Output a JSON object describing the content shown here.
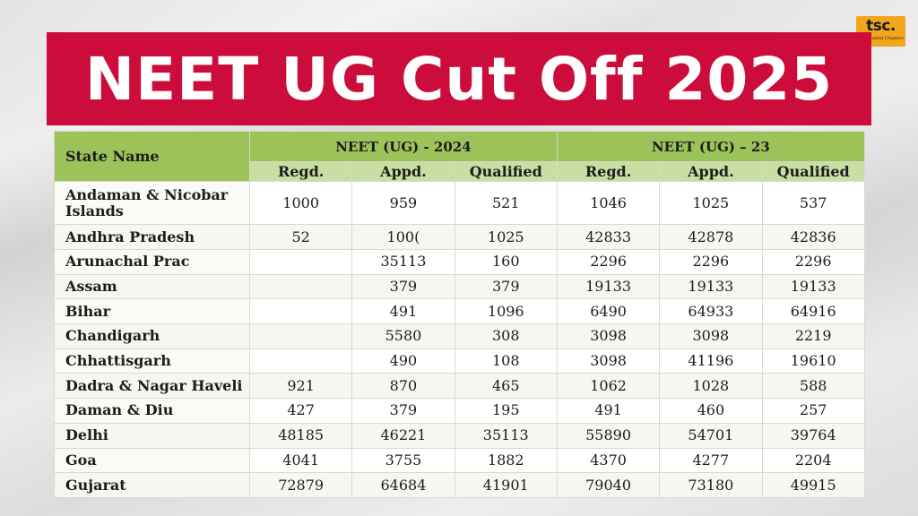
{
  "logo": {
    "main": "tsc.",
    "tagline": "The Student Chapters"
  },
  "banner": {
    "title": "NEET UG Cut Off 2025"
  },
  "table": {
    "state_header": "State Name",
    "group_headers": [
      "NEET (UG) - 2024",
      "NEET (UG) – 23"
    ],
    "sub_headers": [
      "Regd.",
      "Appd.",
      "Qualified",
      "Regd.",
      "Appd.",
      "Qualified"
    ],
    "rows": [
      {
        "state": "Andaman & Nicobar Islands",
        "values": [
          "1000",
          "959",
          "521",
          "1046",
          "1025",
          "537"
        ]
      },
      {
        "state": "Andhra Pradesh",
        "values": [
          "52",
          "100(",
          "1025",
          "42833",
          "42878",
          "42836"
        ]
      },
      {
        "state": "Arunachal Prac",
        "values": [
          "",
          "35113",
          "160",
          "2296",
          "2296",
          "2296"
        ]
      },
      {
        "state": "Assam",
        "values": [
          "",
          "379",
          "379",
          "19133",
          "19133",
          "19133"
        ]
      },
      {
        "state": "Bihar",
        "values": [
          "",
          "491",
          "1096",
          "6490",
          "64933",
          "64916"
        ]
      },
      {
        "state": "Chandigarh",
        "values": [
          "",
          "5580",
          "308",
          "3098",
          "3098",
          "2219"
        ]
      },
      {
        "state": "Chhattisgarh",
        "values": [
          "",
          "490",
          "108",
          "3098",
          "41196",
          "19610"
        ]
      },
      {
        "state": "Dadra & Nagar Haveli",
        "values": [
          "921",
          "870",
          "465",
          "1062",
          "1028",
          "588"
        ]
      },
      {
        "state": "Daman & Diu",
        "values": [
          "427",
          "379",
          "195",
          "491",
          "460",
          "257"
        ]
      },
      {
        "state": "Delhi",
        "values": [
          "48185",
          "46221",
          "35113",
          "55890",
          "54701",
          "39764"
        ]
      },
      {
        "state": "Goa",
        "values": [
          "4041",
          "3755",
          "1882",
          "4370",
          "4277",
          "2204"
        ]
      },
      {
        "state": "Gujarat",
        "values": [
          "72879",
          "64684",
          "41901",
          "79040",
          "73180",
          "49915"
        ]
      }
    ]
  }
}
